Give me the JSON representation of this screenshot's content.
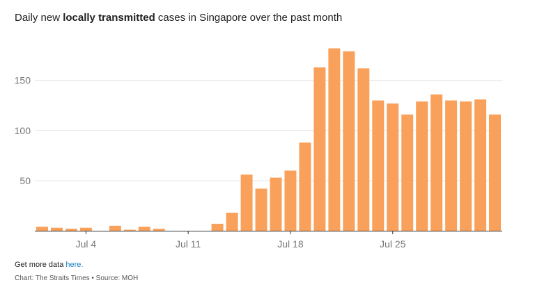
{
  "header": {
    "title_prefix": "Daily new ",
    "title_bold": "locally transmitted",
    "title_suffix": " cases in Singapore over the past month"
  },
  "footer": {
    "more_prefix": "Get more data ",
    "more_link": "here.",
    "credit": "Chart: The Straits Times • Source: MOH"
  },
  "colors": {
    "bar": "#f9a05a",
    "grid": "#e6e6e6",
    "axis": "#333333"
  },
  "chart_data": {
    "type": "bar",
    "title": "Daily new locally transmitted cases in Singapore over the past month",
    "xlabel": "",
    "ylabel": "",
    "categories": [
      "Jul 1",
      "Jul 2",
      "Jul 3",
      "Jul 4",
      "Jul 5",
      "Jul 6",
      "Jul 7",
      "Jul 8",
      "Jul 9",
      "Jul 10",
      "Jul 11",
      "Jul 12",
      "Jul 13",
      "Jul 14",
      "Jul 15",
      "Jul 16",
      "Jul 17",
      "Jul 18",
      "Jul 19",
      "Jul 20",
      "Jul 21",
      "Jul 22",
      "Jul 23",
      "Jul 24",
      "Jul 25",
      "Jul 26",
      "Jul 27",
      "Jul 28",
      "Jul 29",
      "Jul 30",
      "Jul 31",
      "Aug 1"
    ],
    "values": [
      4,
      3,
      2,
      3,
      0,
      5,
      1,
      4,
      2,
      0,
      0,
      0,
      7,
      18,
      56,
      42,
      53,
      60,
      88,
      163,
      182,
      179,
      162,
      130,
      127,
      116,
      129,
      136,
      130,
      129,
      131,
      116
    ],
    "x_ticks": [
      "Jul 4",
      "Jul 11",
      "Jul 18",
      "Jul 25"
    ],
    "y_ticks": [
      50,
      100,
      150
    ],
    "ylim": [
      0,
      190
    ],
    "grid": true
  }
}
